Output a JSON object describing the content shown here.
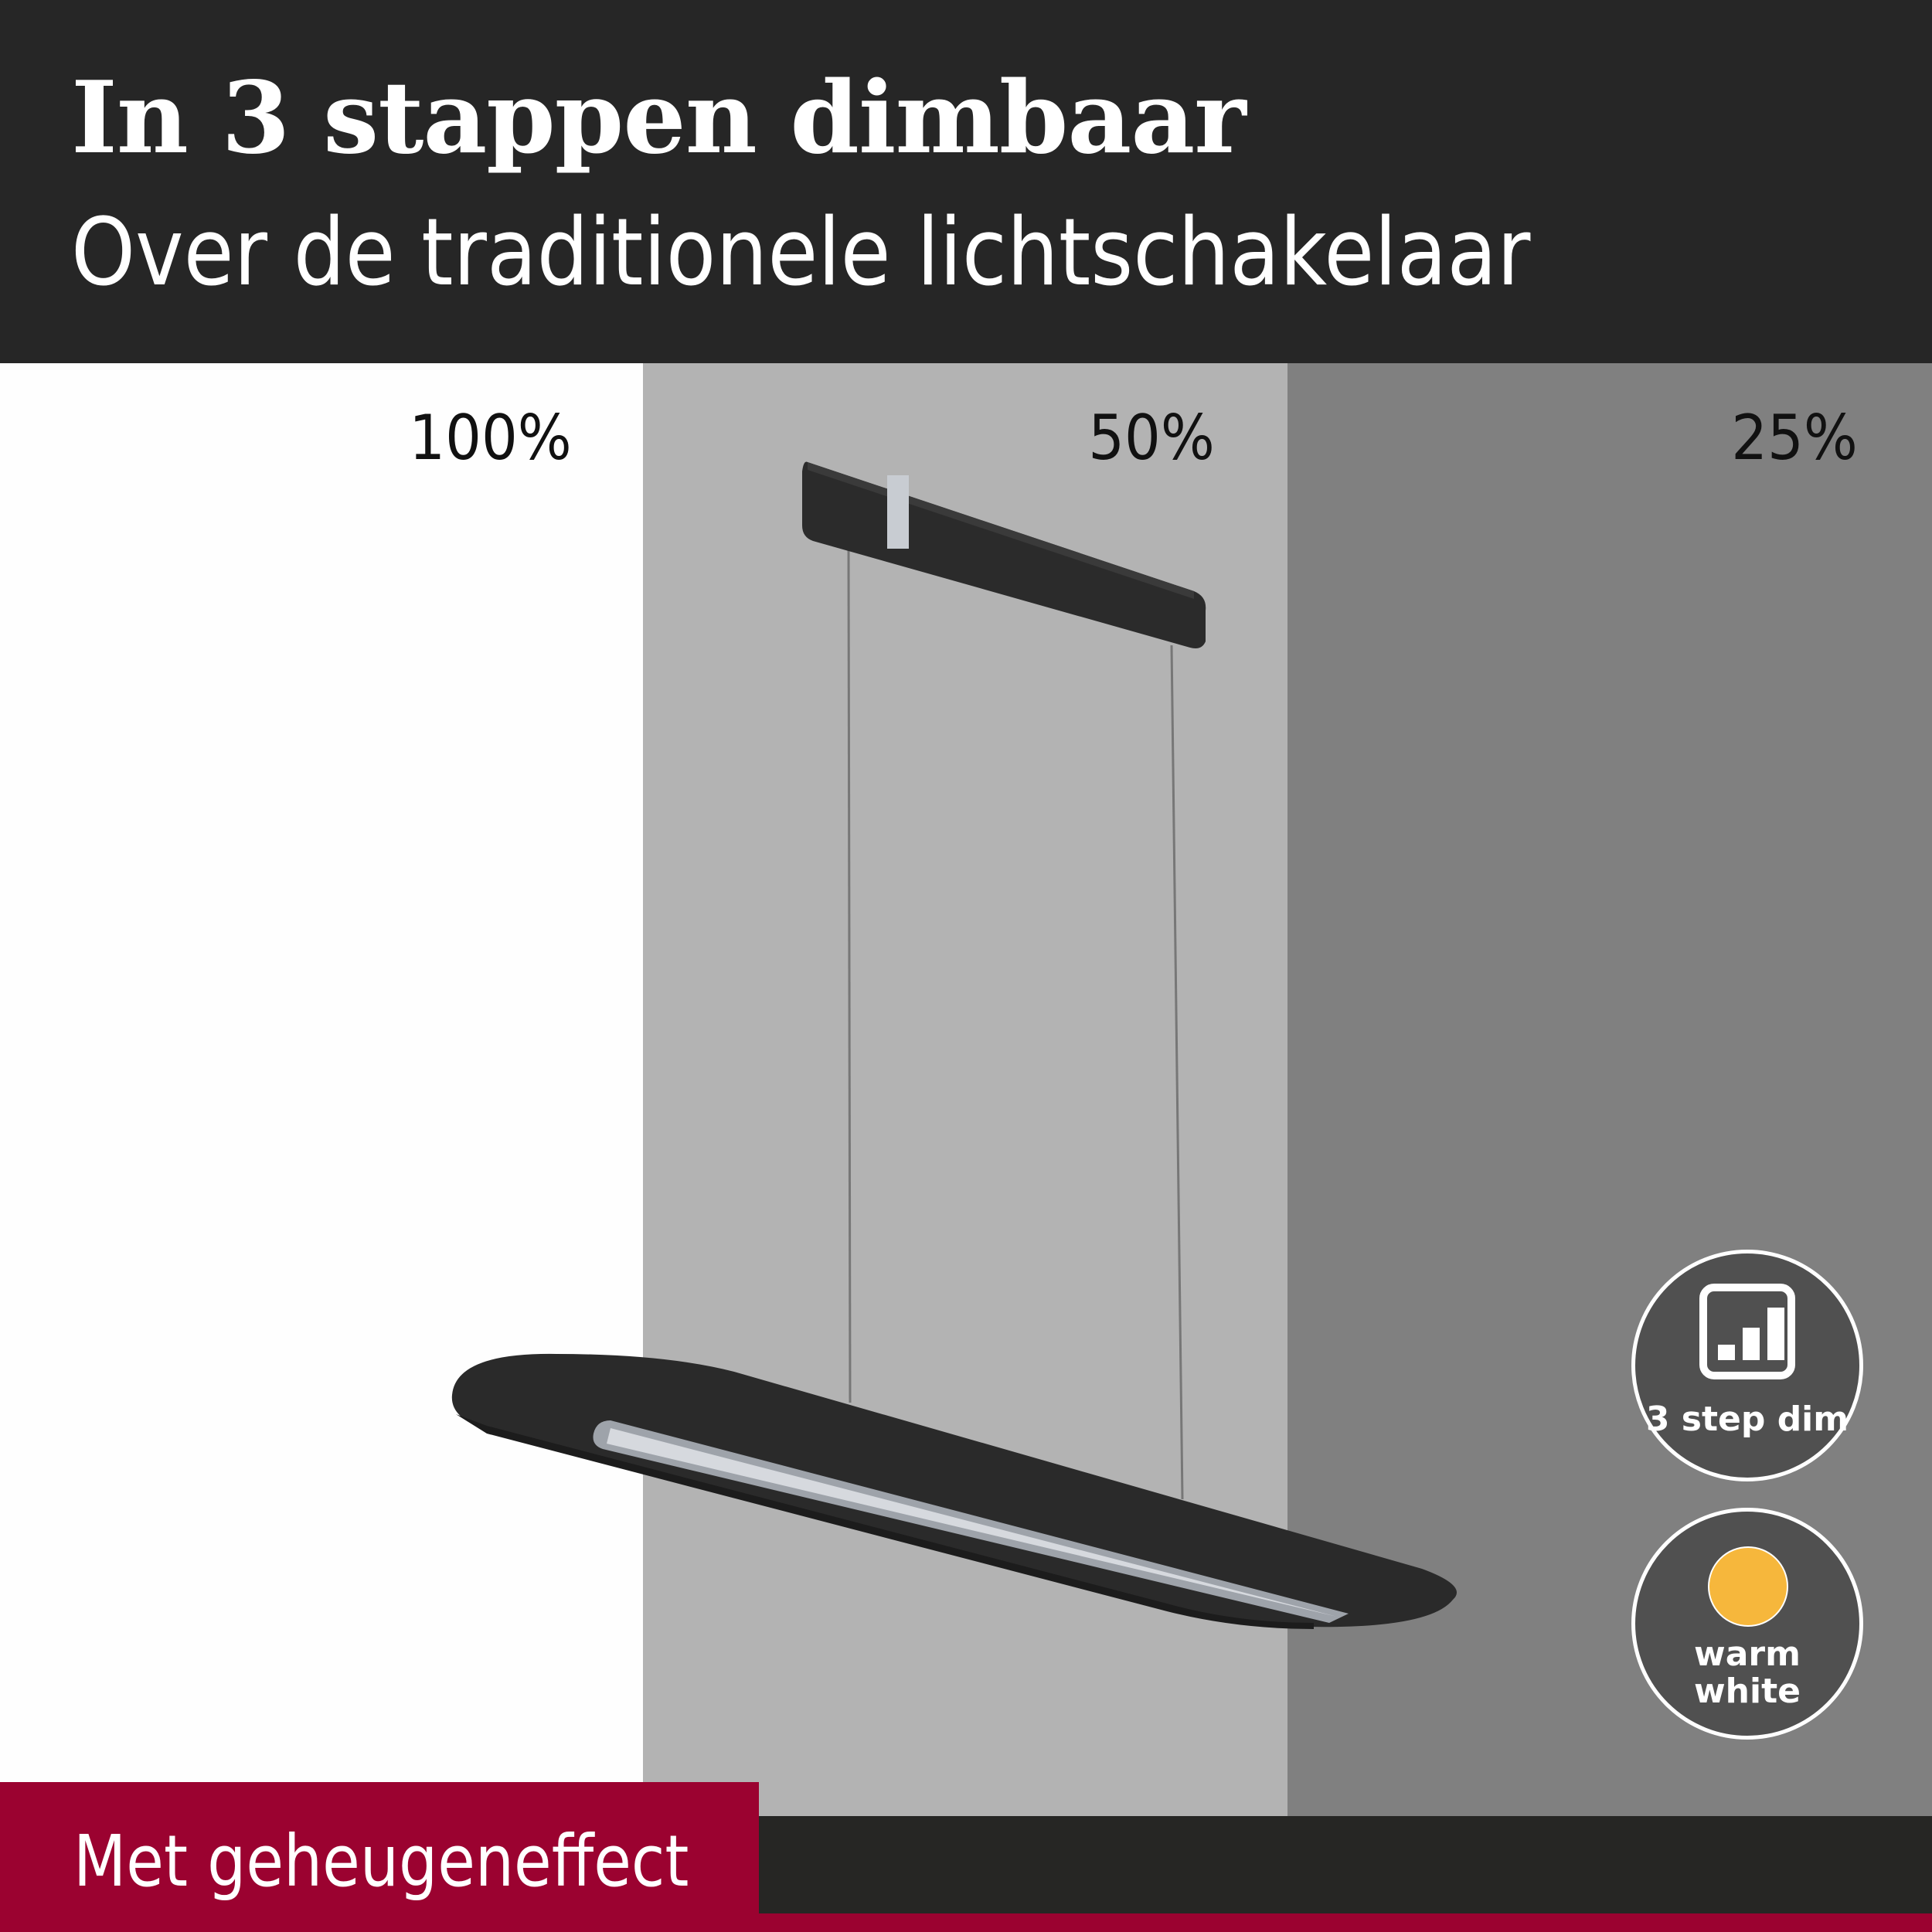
{
  "header": {
    "title": "In 3 stappen dimbaar",
    "subtitle": "Over de traditionele lichtschakelaar"
  },
  "levels": [
    {
      "label": "100%",
      "background": "#fefefe"
    },
    {
      "label": "50%",
      "background": "#b3b3b3"
    },
    {
      "label": "25%",
      "background": "#808080"
    }
  ],
  "badges": [
    {
      "icon": "signal-bars-icon",
      "label": "3 step dim"
    },
    {
      "icon": "warm-light-dot-icon",
      "label_line1": "warm",
      "label_line2": "white",
      "dot_color": "#f6b73c"
    }
  ],
  "footer": {
    "text": "Met geheugeneffect",
    "accent": "#9b0230"
  },
  "colors": {
    "header": "#262626",
    "badge": "#505050"
  }
}
